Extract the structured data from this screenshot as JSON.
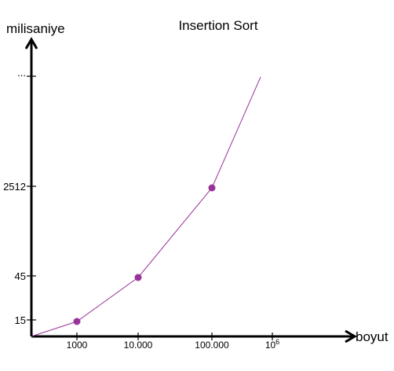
{
  "chart_data": {
    "type": "line",
    "title": "Insertion Sort",
    "xlabel": "boyut",
    "ylabel": "milisaniye",
    "x_ticks": [
      {
        "label": "1000",
        "sup": ""
      },
      {
        "label": "10.000",
        "sup": ""
      },
      {
        "label": "100.000",
        "sup": ""
      },
      {
        "label": "10",
        "sup": "6"
      }
    ],
    "y_ticks": [
      "15",
      "45",
      "2512",
      "..."
    ],
    "series": [
      {
        "color": "#993399",
        "points": [
          {
            "x": "1000",
            "y": 15,
            "marker": true
          },
          {
            "x": "10.000",
            "y": 45,
            "marker": true
          },
          {
            "x": "100.000",
            "y": 2512,
            "marker": true
          }
        ]
      }
    ],
    "grid": false,
    "legend": "none"
  }
}
